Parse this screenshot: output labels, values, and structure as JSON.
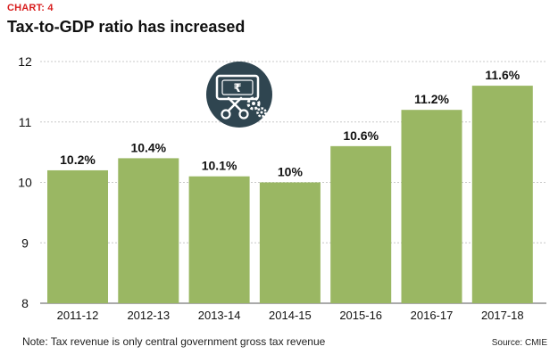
{
  "header": {
    "label": "CHART: 4",
    "title": "Tax-to-GDP ratio has increased"
  },
  "footer": {
    "note": "Note: Tax revenue is only central government gross tax revenue",
    "source": "Source: CMIE"
  },
  "icon": {
    "name": "rupee-scissors-gear-icon",
    "color": "#2f4550",
    "glyph": "₹"
  },
  "colors": {
    "bar": "#9ab763",
    "grid": "#c8c8c8",
    "text": "#111111",
    "label_red": "#d81e1e"
  },
  "chart_data": {
    "type": "bar",
    "title": "Tax-to-GDP ratio has increased",
    "xlabel": "",
    "ylabel": "",
    "ylim": [
      8,
      12
    ],
    "yticks": [
      "8",
      "9",
      "10",
      "11",
      "12"
    ],
    "grid": true,
    "categories": [
      "2011-12",
      "2012-13",
      "2013-14",
      "2014-15",
      "2015-16",
      "2016-17",
      "2017-18"
    ],
    "values": [
      10.2,
      10.4,
      10.1,
      10.0,
      10.6,
      11.2,
      11.6
    ],
    "data_labels": [
      "10.2%",
      "10.4%",
      "10.1%",
      "10%",
      "10.6%",
      "11.2%",
      "11.6%"
    ]
  }
}
